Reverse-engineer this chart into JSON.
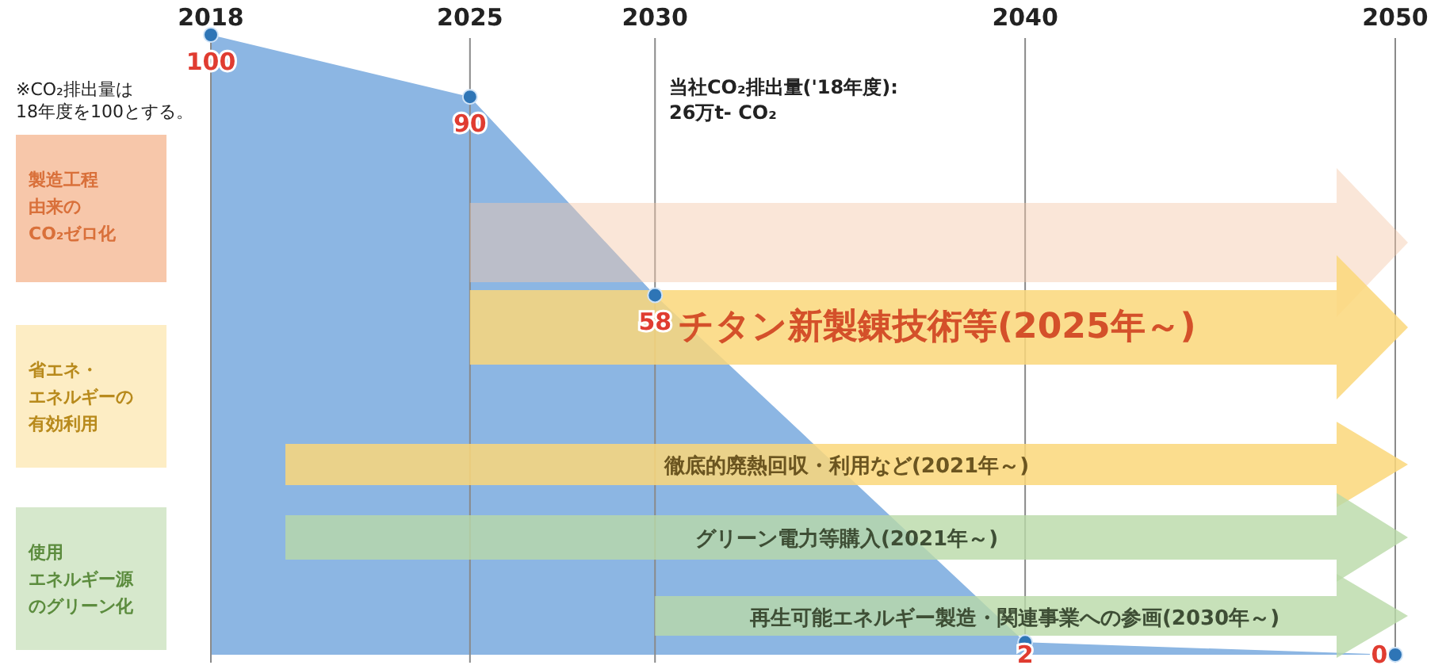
{
  "chart_data": {
    "type": "area",
    "x": [
      2018,
      2025,
      2030,
      2040,
      2050
    ],
    "xlim": [
      2018,
      2050
    ],
    "xticks": [
      2018,
      2025,
      2030,
      2040,
      2050
    ],
    "values": [
      100,
      90,
      58,
      2,
      0
    ],
    "color": "#8cb6e3",
    "marker": "circle",
    "data_labels": true,
    "grid": "x",
    "annotations": [
      "※CO₂排出量は\n18年度を100とする。",
      "当社CO₂排出量('18年度):\n26万t- CO₂",
      "製造工程由来のCO₂ゼロ化",
      "省エネ・エネルギーの有効利用",
      "使用エネルギー源のグリーン化",
      "チタン新製錬技術等(2025年～)",
      "徹底的廃熱回収・利用など(2021年～)",
      "グリーン電力等購入(2021年～)",
      "再生可能エネルギー製造・関連事業への参画(2030年～)"
    ]
  }
}
